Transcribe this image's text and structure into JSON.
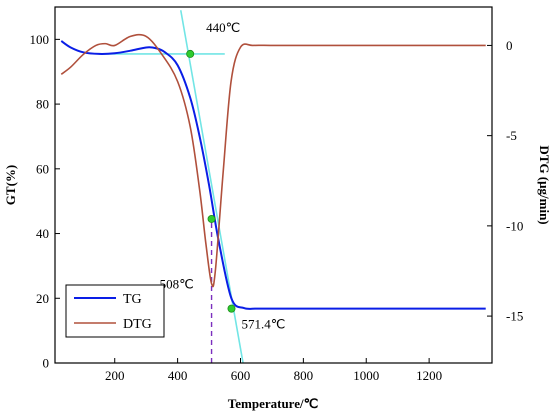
{
  "colors": {
    "tg": "#0a1ee6",
    "dtg": "#b0503c",
    "tangent": "#63e3e3",
    "marker": "#2ecc2e",
    "dashed": "#7b2fbe",
    "axis": "#000000"
  },
  "chart_data": {
    "type": "line",
    "xlabel": "Temperature/℃",
    "ylabel_left": "GT(%)",
    "ylabel_right": "DTG (μg/min)",
    "xlim": [
      10,
      1400
    ],
    "ylim_left": [
      0,
      110
    ],
    "ylim_right": [
      -17.6,
      2.13
    ],
    "x_ticks": [
      200,
      400,
      600,
      800,
      1000,
      1200
    ],
    "y_left_ticks": [
      0,
      20,
      40,
      60,
      80,
      100
    ],
    "y_right_ticks": [
      0,
      -5,
      -10,
      -15
    ],
    "grid": false,
    "legend_position": "bottom-left",
    "series": [
      {
        "name": "TG",
        "axis": "left",
        "color_key": "tg",
        "x": [
          30,
          60,
          100,
          150,
          200,
          250,
          300,
          330,
          360,
          400,
          440,
          470,
          500,
          530,
          571,
          610,
          650,
          700,
          800,
          1000,
          1200,
          1380
        ],
        "y": [
          99.5,
          97.5,
          96,
          95.5,
          95.7,
          96.5,
          97.5,
          97.3,
          96,
          92,
          82,
          70,
          55,
          38,
          20,
          17,
          16.8,
          16.8,
          16.8,
          16.8,
          16.8,
          16.8
        ]
      },
      {
        "name": "DTG",
        "axis": "right",
        "color_key": "dtg",
        "x": [
          30,
          60,
          100,
          140,
          170,
          200,
          250,
          300,
          350,
          400,
          440,
          470,
          490,
          508,
          520,
          545,
          570,
          600,
          640,
          700,
          800,
          1000,
          1200,
          1380
        ],
        "y": [
          -1.6,
          -1.2,
          -0.5,
          0,
          0.1,
          0,
          0.5,
          0.5,
          -0.5,
          -2,
          -4.5,
          -8,
          -11,
          -13.2,
          -12.5,
          -7,
          -2,
          -0.1,
          0,
          0,
          0,
          0,
          0,
          0
        ]
      }
    ],
    "annotations": [
      {
        "text": "440℃",
        "x": 440,
        "y": 95.5
      },
      {
        "text": "508℃",
        "x": 508,
        "y": 20
      },
      {
        "text": "571.4℃",
        "x": 571.4,
        "y": 16.8
      }
    ],
    "markers": [
      {
        "x": 440,
        "y": 95.5,
        "axis": "left"
      },
      {
        "x": 508,
        "y": 44.5,
        "axis": "left"
      },
      {
        "x": 571.4,
        "y": 16.8,
        "axis": "left"
      }
    ],
    "tangent_lines": [
      {
        "axis": "left",
        "x1": 150,
        "y1": 95.5,
        "x2": 550,
        "y2": 95.5
      },
      {
        "axis": "left",
        "x1": 410,
        "y1": 109,
        "x2": 610,
        "y2": -1
      }
    ],
    "dashed_line": {
      "x": 508,
      "y_from": 0,
      "y_to": 44.5,
      "axis": "left"
    }
  }
}
